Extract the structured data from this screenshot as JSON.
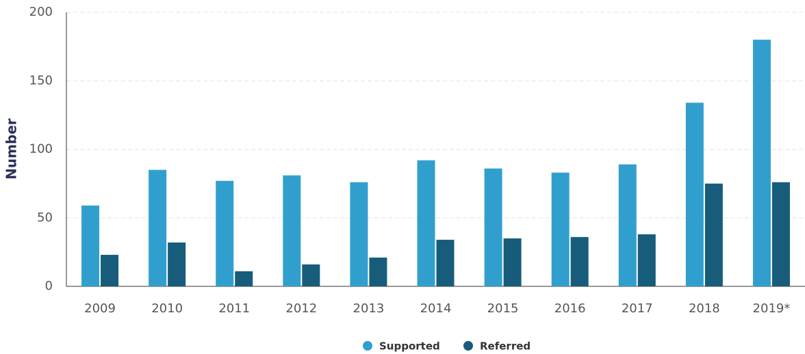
{
  "chart_data": {
    "type": "bar",
    "y_label": "Number",
    "categories": [
      "2009",
      "2010",
      "2011",
      "2012",
      "2013",
      "2014",
      "2015",
      "2016",
      "2017",
      "2018",
      "2019*"
    ],
    "series": [
      {
        "name": "Supported",
        "color": "#319fce",
        "values": [
          59,
          85,
          77,
          81,
          76,
          92,
          86,
          83,
          89,
          134,
          180
        ]
      },
      {
        "name": "Referred",
        "color": "#175c7a",
        "values": [
          23,
          32,
          11,
          16,
          21,
          34,
          35,
          36,
          38,
          75,
          76
        ]
      }
    ],
    "ylim": [
      0,
      200
    ],
    "yticks": [
      0,
      50,
      100,
      150,
      200
    ],
    "grid": true
  }
}
